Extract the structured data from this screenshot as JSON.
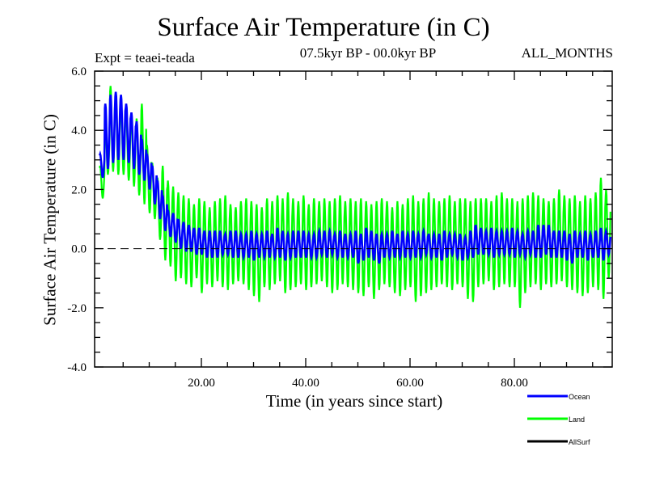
{
  "chart_data": {
    "type": "line",
    "title": "Surface Air Temperature (in C)",
    "subtitle_left": "Expt = teaei-teada",
    "subtitle_center": "07.5kyr BP - 00.0kyr BP",
    "subtitle_right": "ALL_MONTHS",
    "xlabel": "Time (in years since start)",
    "ylabel": "Surface Air Temperature (in C)",
    "xlim": [
      0.5,
      98.8
    ],
    "ylim": [
      -4.0,
      6.0
    ],
    "x_ticks": [
      20,
      40,
      60,
      80
    ],
    "x_tick_labels": [
      "20.00",
      "40.00",
      "60.00",
      "80.00"
    ],
    "x_minor_step": 5,
    "y_ticks": [
      -4,
      -2,
      0,
      2,
      4,
      6
    ],
    "y_tick_labels": [
      "-4.0",
      "-2.0",
      "0.0",
      "2.0",
      "4.0",
      "6.0"
    ],
    "y_minor_step": 0.5,
    "reference_line": {
      "y": 0.0,
      "style": "dashed"
    },
    "grid": false,
    "legend_position": "bottom-right",
    "sampling": "monthly (annual cycle); values below are per-year max/min of each series",
    "years": [
      1,
      2,
      3,
      4,
      5,
      6,
      7,
      8,
      9,
      10,
      11,
      12,
      13,
      14,
      15,
      16,
      17,
      18,
      19,
      20,
      21,
      22,
      23,
      24,
      25,
      26,
      27,
      28,
      29,
      30,
      31,
      32,
      33,
      34,
      35,
      36,
      37,
      38,
      39,
      40,
      41,
      42,
      43,
      44,
      45,
      46,
      47,
      48,
      49,
      50,
      51,
      52,
      53,
      54,
      55,
      56,
      57,
      58,
      59,
      60,
      61,
      62,
      63,
      64,
      65,
      66,
      67,
      68,
      69,
      70,
      71,
      72,
      73,
      74,
      75,
      76,
      77,
      78,
      79,
      80,
      81,
      82,
      83,
      84,
      85,
      86,
      87,
      88,
      89,
      90,
      91,
      92,
      93,
      94,
      95,
      96,
      97,
      98
    ],
    "series": [
      {
        "name": "Ocean",
        "color": "#0000ff",
        "annual_max": [
          3.2,
          4.9,
          5.2,
          5.3,
          5.2,
          4.9,
          4.6,
          4.3,
          3.7,
          3.2,
          2.8,
          2.3,
          1.8,
          1.3,
          1.2,
          1.0,
          0.9,
          0.8,
          0.7,
          0.7,
          0.6,
          0.6,
          0.6,
          0.6,
          0.5,
          0.6,
          0.6,
          0.5,
          0.5,
          0.6,
          0.5,
          0.5,
          0.6,
          0.5,
          0.7,
          0.6,
          0.5,
          0.6,
          0.6,
          0.6,
          0.5,
          0.5,
          0.6,
          0.6,
          0.6,
          0.5,
          0.6,
          0.5,
          0.5,
          0.6,
          0.5,
          0.7,
          0.6,
          0.5,
          0.5,
          0.5,
          0.6,
          0.5,
          0.6,
          0.5,
          0.6,
          0.5,
          0.6,
          0.5,
          0.5,
          0.5,
          0.6,
          0.5,
          0.5,
          0.5,
          0.4,
          0.6,
          0.8,
          0.7,
          0.6,
          0.7,
          0.6,
          0.6,
          0.6,
          0.7,
          0.6,
          0.5,
          0.6,
          0.6,
          0.8,
          0.8,
          0.8,
          0.6,
          0.6,
          0.6,
          0.5,
          0.6,
          0.5,
          0.6,
          0.5,
          0.6,
          0.7,
          0.6
        ],
        "annual_min": [
          2.4,
          2.7,
          2.9,
          3.0,
          3.0,
          2.9,
          2.7,
          2.5,
          2.3,
          2.0,
          1.5,
          1.0,
          0.6,
          0.4,
          0.2,
          0.0,
          -0.1,
          -0.1,
          -0.2,
          -0.2,
          -0.3,
          -0.3,
          -0.3,
          -0.2,
          -0.2,
          -0.3,
          -0.3,
          -0.3,
          -0.3,
          -0.4,
          -0.3,
          -0.3,
          -0.3,
          -0.3,
          -0.3,
          -0.4,
          -0.3,
          -0.3,
          -0.3,
          -0.3,
          -0.3,
          -0.3,
          -0.2,
          -0.3,
          -0.2,
          -0.3,
          -0.3,
          -0.3,
          -0.3,
          -0.5,
          -0.4,
          -0.3,
          -0.4,
          -0.5,
          -0.3,
          -0.3,
          -0.3,
          -0.3,
          -0.3,
          -0.3,
          -0.3,
          -0.3,
          -0.2,
          -0.3,
          -0.3,
          -0.4,
          -0.3,
          -0.2,
          -0.3,
          -0.4,
          -0.3,
          -0.3,
          -0.2,
          -0.2,
          -0.2,
          -0.3,
          -0.2,
          -0.2,
          -0.2,
          -0.3,
          -0.2,
          -0.3,
          -0.2,
          -0.3,
          -0.3,
          -0.2,
          -0.3,
          -0.3,
          -0.3,
          -0.4,
          -0.5,
          -0.3,
          -0.3,
          -0.4,
          -0.3,
          -0.3,
          -0.4,
          -0.2
        ]
      },
      {
        "name": "Land",
        "color": "#00ff00",
        "annual_max": [
          2.8,
          4.3,
          5.5,
          5.1,
          4.9,
          4.6,
          4.5,
          4.4,
          4.9,
          3.5,
          2.9,
          2.4,
          2.8,
          2.3,
          2.1,
          1.9,
          1.8,
          1.7,
          1.5,
          1.7,
          1.6,
          1.4,
          1.6,
          1.7,
          1.8,
          1.5,
          1.4,
          1.6,
          1.7,
          1.6,
          1.5,
          1.4,
          1.7,
          1.6,
          1.8,
          1.7,
          1.9,
          1.7,
          1.6,
          1.8,
          1.5,
          1.7,
          1.6,
          1.7,
          1.6,
          1.7,
          1.8,
          1.6,
          1.7,
          1.6,
          1.7,
          1.6,
          1.5,
          1.6,
          1.7,
          1.6,
          1.4,
          1.6,
          1.5,
          1.7,
          1.8,
          1.6,
          1.7,
          1.9,
          1.7,
          1.6,
          1.7,
          1.8,
          1.6,
          1.7,
          1.7,
          1.6,
          1.7,
          1.7,
          1.7,
          1.6,
          1.8,
          1.9,
          1.7,
          1.7,
          1.6,
          1.7,
          1.8,
          1.9,
          1.8,
          1.7,
          1.6,
          1.7,
          2.0,
          1.8,
          1.7,
          1.8,
          1.6,
          1.8,
          1.7,
          1.9,
          2.4,
          2.0
        ],
        "annual_min": [
          1.7,
          2.5,
          2.6,
          2.5,
          2.5,
          2.3,
          2.1,
          1.8,
          1.5,
          1.2,
          1.0,
          0.3,
          -0.4,
          -0.6,
          -1.1,
          -1.0,
          -1.2,
          -1.3,
          -1.0,
          -1.5,
          -1.2,
          -1.3,
          -1.1,
          -1.3,
          -1.4,
          -1.2,
          -1.1,
          -1.2,
          -1.4,
          -1.6,
          -1.8,
          -1.3,
          -1.4,
          -1.2,
          -1.1,
          -1.5,
          -1.4,
          -1.3,
          -1.2,
          -1.4,
          -1.3,
          -1.2,
          -1.1,
          -1.3,
          -1.5,
          -1.4,
          -1.2,
          -1.3,
          -1.4,
          -1.5,
          -1.6,
          -1.3,
          -1.7,
          -1.4,
          -1.2,
          -1.3,
          -1.5,
          -1.6,
          -1.4,
          -1.3,
          -1.8,
          -1.6,
          -1.5,
          -1.4,
          -1.3,
          -1.2,
          -1.3,
          -1.4,
          -1.2,
          -1.3,
          -1.7,
          -1.8,
          -1.3,
          -1.2,
          -1.1,
          -1.4,
          -1.3,
          -1.2,
          -1.3,
          -1.3,
          -2.0,
          -1.5,
          -1.3,
          -1.2,
          -1.4,
          -1.2,
          -1.3,
          -1.2,
          -1.1,
          -1.3,
          -1.4,
          -1.5,
          -1.6,
          -1.5,
          -1.3,
          -1.4,
          -1.7,
          -1.0
        ]
      },
      {
        "name": "AllSurf",
        "color": "#000000",
        "annual_max": [],
        "annual_min": []
      }
    ]
  }
}
